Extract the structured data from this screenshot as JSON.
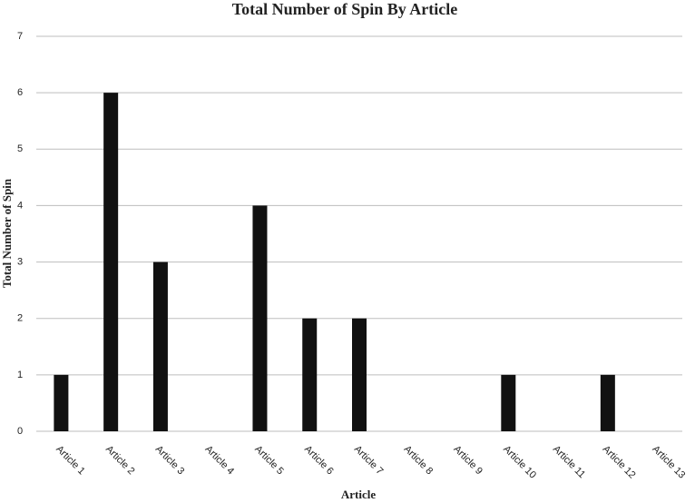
{
  "chart_data": {
    "type": "bar",
    "title": "Total Number of Spin By Article",
    "x_label": "Article",
    "y_label": "Total Number of Spin",
    "categories": [
      "Article 1",
      "Article 2",
      "Article 3",
      "Article 4",
      "Article 5",
      "Article 6",
      "Article 7",
      "Article 8",
      "Article 9",
      "Article 10",
      "Article 11",
      "Article 12",
      "Article 13"
    ],
    "values": [
      1,
      6,
      3,
      0,
      4,
      2,
      2,
      0,
      0,
      1,
      0,
      1,
      0
    ],
    "color": "#111111",
    "ylim": [
      0,
      7
    ],
    "yticks": [
      0,
      1,
      2,
      3,
      4,
      5,
      6,
      7
    ],
    "grid": true
  }
}
